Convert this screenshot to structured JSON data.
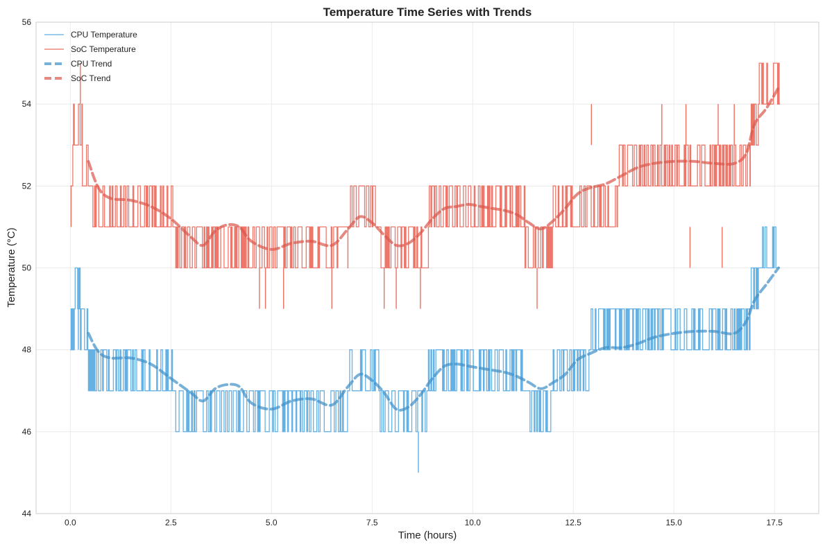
{
  "chart_data": {
    "type": "line",
    "title": "Temperature Time Series with Trends",
    "xlabel": "Time (hours)",
    "ylabel": "Temperature (°C)",
    "xlim": [
      -0.85,
      18.6
    ],
    "ylim": [
      44,
      56
    ],
    "x_ticks": [
      0.0,
      2.5,
      5.0,
      7.5,
      10.0,
      12.5,
      15.0,
      17.5
    ],
    "x_tick_labels": [
      "0.0",
      "2.5",
      "5.0",
      "7.5",
      "10.0",
      "12.5",
      "15.0",
      "17.5"
    ],
    "y_ticks": [
      44,
      46,
      48,
      50,
      52,
      54,
      56
    ],
    "y_tick_labels": [
      "44",
      "46",
      "48",
      "50",
      "52",
      "54",
      "56"
    ],
    "grid": true,
    "legend_position": "top-left",
    "series": [
      {
        "name": "CPU Temperature",
        "kind": "raw",
        "color": "#5DADE2",
        "bands": [
          {
            "x0": 0.0,
            "x1": 0.1,
            "low": 48,
            "high": 49
          },
          {
            "x0": 0.1,
            "x1": 0.25,
            "low": 49,
            "high": 50
          },
          {
            "x0": 0.25,
            "x1": 0.45,
            "low": 48,
            "high": 49
          },
          {
            "x0": 0.45,
            "x1": 2.6,
            "low": 47,
            "high": 48
          },
          {
            "x0": 2.6,
            "x1": 4.2,
            "low": 46,
            "high": 47
          },
          {
            "x0": 4.2,
            "x1": 6.9,
            "low": 46,
            "high": 47
          },
          {
            "x0": 6.9,
            "x1": 7.7,
            "low": 47,
            "high": 48
          },
          {
            "x0": 7.7,
            "x1": 8.9,
            "low": 46,
            "high": 47
          },
          {
            "x0": 8.9,
            "x1": 11.3,
            "low": 47,
            "high": 48
          },
          {
            "x0": 11.3,
            "x1": 12.0,
            "low": 46,
            "high": 47
          },
          {
            "x0": 12.0,
            "x1": 12.9,
            "low": 47,
            "high": 48
          },
          {
            "x0": 12.9,
            "x1": 16.9,
            "low": 48,
            "high": 49
          },
          {
            "x0": 16.9,
            "x1": 17.1,
            "low": 49,
            "high": 50
          },
          {
            "x0": 17.1,
            "x1": 17.65,
            "low": 50,
            "high": 51
          }
        ],
        "spikes": [
          {
            "x": 8.65,
            "low": 45,
            "high": 46
          },
          {
            "x": 0.2,
            "low": 48,
            "high": 50
          },
          {
            "x": 14.3,
            "low": 48,
            "high": 49
          }
        ]
      },
      {
        "name": "SoC Temperature",
        "kind": "raw",
        "color": "#EC7063",
        "bands": [
          {
            "x0": 0.0,
            "x1": 0.08,
            "low": 52,
            "high": 53
          },
          {
            "x0": 0.08,
            "x1": 0.3,
            "low": 53,
            "high": 54
          },
          {
            "x0": 0.3,
            "x1": 0.5,
            "low": 52,
            "high": 53
          },
          {
            "x0": 0.5,
            "x1": 2.6,
            "low": 51,
            "high": 52
          },
          {
            "x0": 2.6,
            "x1": 4.0,
            "low": 50,
            "high": 51
          },
          {
            "x0": 4.0,
            "x1": 6.9,
            "low": 50,
            "high": 51
          },
          {
            "x0": 6.9,
            "x1": 7.7,
            "low": 51,
            "high": 52
          },
          {
            "x0": 7.7,
            "x1": 8.9,
            "low": 50,
            "high": 51
          },
          {
            "x0": 8.9,
            "x1": 11.3,
            "low": 51,
            "high": 52
          },
          {
            "x0": 11.3,
            "x1": 12.0,
            "low": 50,
            "high": 51
          },
          {
            "x0": 12.0,
            "x1": 12.8,
            "low": 51,
            "high": 52
          },
          {
            "x0": 12.8,
            "x1": 13.6,
            "low": 51,
            "high": 52
          },
          {
            "x0": 13.6,
            "x1": 16.9,
            "low": 52,
            "high": 53
          },
          {
            "x0": 16.9,
            "x1": 17.1,
            "low": 53,
            "high": 54
          },
          {
            "x0": 17.1,
            "x1": 17.65,
            "low": 54,
            "high": 55
          }
        ],
        "spikes": [
          {
            "x": 0.25,
            "low": 54,
            "high": 55
          },
          {
            "x": 0.02,
            "low": 51,
            "high": 52
          },
          {
            "x": 4.7,
            "low": 49,
            "high": 50
          },
          {
            "x": 4.85,
            "low": 49,
            "high": 50
          },
          {
            "x": 5.3,
            "low": 49,
            "high": 50
          },
          {
            "x": 6.5,
            "low": 49,
            "high": 50
          },
          {
            "x": 7.8,
            "low": 49,
            "high": 50
          },
          {
            "x": 8.1,
            "low": 49,
            "high": 50
          },
          {
            "x": 8.7,
            "low": 49,
            "high": 50
          },
          {
            "x": 11.6,
            "low": 49,
            "high": 50
          },
          {
            "x": 12.95,
            "low": 53,
            "high": 54
          },
          {
            "x": 14.7,
            "low": 53,
            "high": 54
          },
          {
            "x": 15.3,
            "low": 53,
            "high": 54
          },
          {
            "x": 16.1,
            "low": 53,
            "high": 54
          },
          {
            "x": 16.5,
            "low": 53,
            "high": 54
          },
          {
            "x": 15.4,
            "low": 50,
            "high": 51
          },
          {
            "x": 16.2,
            "low": 50,
            "high": 51
          }
        ]
      },
      {
        "name": "CPU Trend",
        "kind": "trend",
        "color": "#5DADE2",
        "x": [
          0.45,
          0.7,
          1.0,
          1.5,
          2.0,
          2.5,
          3.0,
          3.3,
          3.6,
          3.9,
          4.2,
          4.5,
          5.0,
          5.5,
          6.0,
          6.5,
          6.9,
          7.2,
          7.5,
          7.8,
          8.1,
          8.4,
          8.7,
          9.0,
          9.3,
          9.6,
          9.9,
          10.2,
          10.5,
          10.8,
          11.1,
          11.4,
          11.7,
          12.0,
          12.3,
          12.6,
          12.9,
          13.3,
          13.7,
          14.1,
          14.5,
          15.0,
          15.5,
          16.0,
          16.5,
          16.8,
          17.0,
          17.3,
          17.6
        ],
        "y": [
          48.4,
          47.95,
          47.8,
          47.8,
          47.65,
          47.3,
          46.95,
          46.75,
          47.05,
          47.15,
          47.1,
          46.7,
          46.55,
          46.75,
          46.8,
          46.65,
          47.1,
          47.4,
          47.25,
          46.95,
          46.55,
          46.6,
          46.9,
          47.3,
          47.6,
          47.65,
          47.6,
          47.55,
          47.5,
          47.45,
          47.35,
          47.2,
          47.05,
          47.2,
          47.4,
          47.75,
          47.9,
          48.05,
          48.05,
          48.15,
          48.3,
          48.4,
          48.45,
          48.45,
          48.4,
          48.7,
          49.2,
          49.6,
          50.0
        ]
      },
      {
        "name": "SoC Trend",
        "kind": "trend",
        "color": "#EC7063",
        "x": [
          0.45,
          0.7,
          1.0,
          1.5,
          2.0,
          2.5,
          3.0,
          3.3,
          3.6,
          3.9,
          4.2,
          4.5,
          5.0,
          5.5,
          6.0,
          6.5,
          6.9,
          7.2,
          7.5,
          7.8,
          8.1,
          8.4,
          8.7,
          9.0,
          9.3,
          9.6,
          9.9,
          10.2,
          10.5,
          10.8,
          11.1,
          11.4,
          11.7,
          12.0,
          12.3,
          12.6,
          12.9,
          13.3,
          13.7,
          14.1,
          14.5,
          15.0,
          15.5,
          16.0,
          16.5,
          16.8,
          17.0,
          17.3,
          17.6
        ],
        "y": [
          52.6,
          51.95,
          51.7,
          51.65,
          51.5,
          51.2,
          50.75,
          50.55,
          50.9,
          51.05,
          51.0,
          50.65,
          50.45,
          50.6,
          50.65,
          50.55,
          50.95,
          51.25,
          51.1,
          50.8,
          50.55,
          50.6,
          50.85,
          51.2,
          51.45,
          51.5,
          51.55,
          51.5,
          51.45,
          51.4,
          51.3,
          51.1,
          50.95,
          51.15,
          51.45,
          51.8,
          51.95,
          52.05,
          52.25,
          52.45,
          52.55,
          52.6,
          52.6,
          52.55,
          52.55,
          52.8,
          53.5,
          53.9,
          54.4
        ]
      }
    ]
  }
}
